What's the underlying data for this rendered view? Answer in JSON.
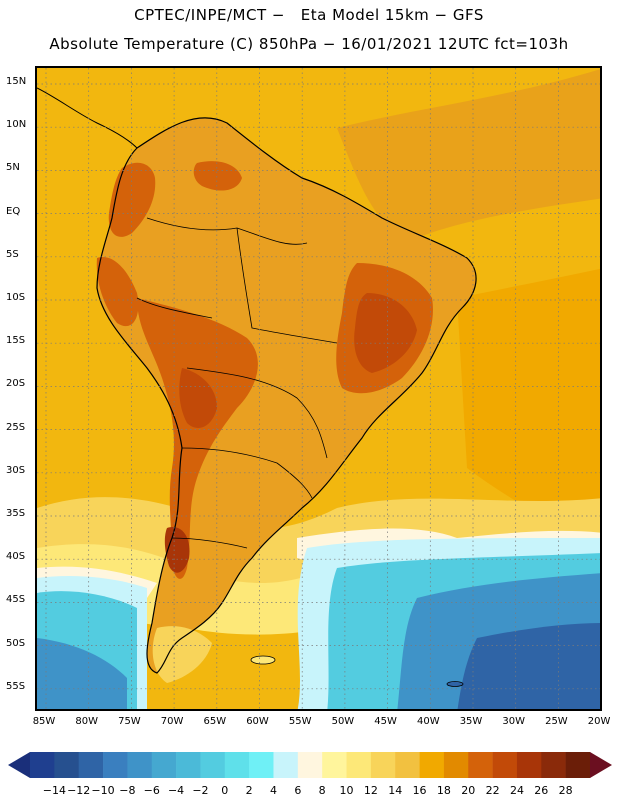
{
  "header": {
    "line1": "CPTEC/INPE/MCT −   Eta Model 15km − GFS",
    "line2": "Absolute Temperature (C) 850hPa − 16/01/2021 12UTC fct=103h"
  },
  "axes": {
    "lat_labels": [
      "15N",
      "10N",
      "5N",
      "EQ",
      "5S",
      "10S",
      "15S",
      "20S",
      "25S",
      "30S",
      "35S",
      "40S",
      "45S",
      "50S",
      "55S"
    ],
    "lon_labels": [
      "85W",
      "80W",
      "75W",
      "70W",
      "65W",
      "60W",
      "55W",
      "50W",
      "45W",
      "40W",
      "35W",
      "30W",
      "25W",
      "20W"
    ]
  },
  "colorbar": {
    "labels": [
      "-14",
      "-12",
      "-10",
      "-8",
      "-6",
      "-4",
      "-2",
      "0",
      "2",
      "4",
      "6",
      "8",
      "10",
      "12",
      "14",
      "16",
      "18",
      "20",
      "22",
      "24",
      "26",
      "28"
    ],
    "colors": [
      "#1f3f8f",
      "#26508f",
      "#2f64a6",
      "#3a7fbf",
      "#3f93c8",
      "#45a8d0",
      "#4bbad8",
      "#53cce0",
      "#5fe0ea",
      "#6ff0f6",
      "#c8f4fb",
      "#fff6df",
      "#fff59c",
      "#fde878",
      "#f8d45a",
      "#f2c140",
      "#f1a900",
      "#e28a00",
      "#d4620a",
      "#c24a08",
      "#a83508",
      "#8a2a0a",
      "#6b1e08"
    ],
    "left_arrow_color": "#1a2f7a",
    "right_arrow_color": "#6b0f20"
  },
  "map_colors": {
    "ocean_north": "#f2b70f",
    "ocean_warm": "#e9a21a",
    "land_base": "#e9a021",
    "land_hot": "#d4620a",
    "land_hotter": "#c24a08",
    "land_hottest": "#a83508",
    "yellow_band": "#f8d45a",
    "light_yellow": "#fde878",
    "cream": "#fff6df",
    "pale_cyan": "#c8f4fb",
    "cyan": "#53cce0",
    "blue": "#3f93c8",
    "deep_blue": "#2f64a6",
    "dotted_grid": "#7a7a7a",
    "coast": "#000000"
  }
}
